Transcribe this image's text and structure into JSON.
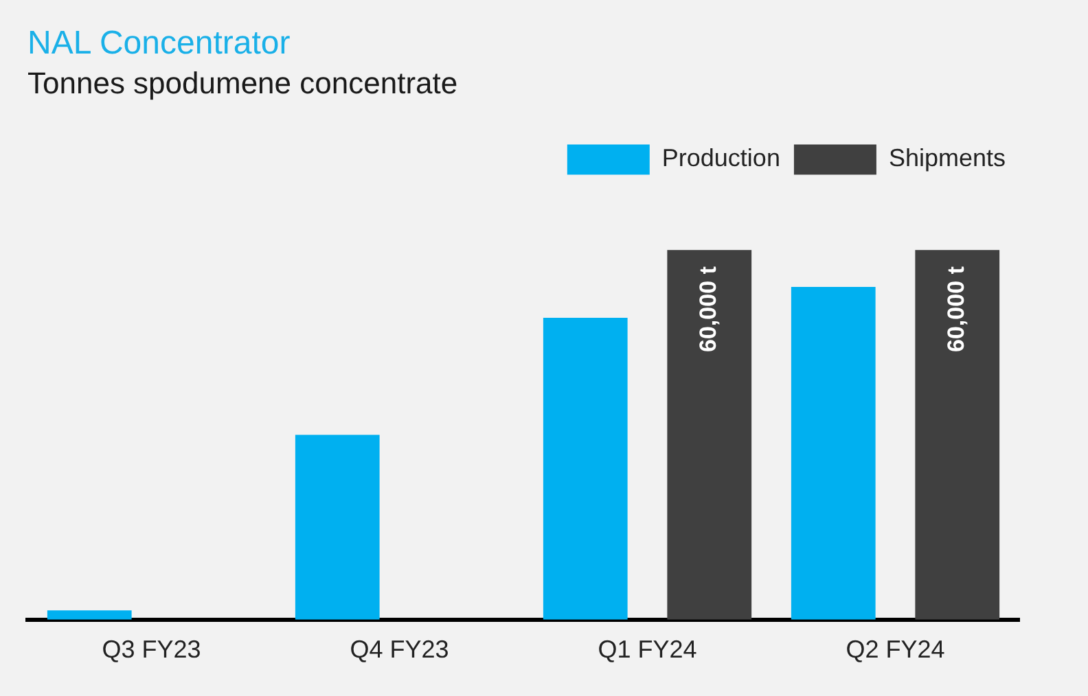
{
  "chart_data": {
    "type": "bar",
    "title": "NAL Concentrator",
    "subtitle": "Tonnes spodumene concentrate",
    "categories": [
      "Q3 FY23",
      "Q4 FY23",
      "Q1 FY24",
      "Q2 FY24"
    ],
    "tick_labels": "x",
    "legend": "top right",
    "grid": false,
    "series": [
      {
        "name": "Production",
        "color": "#00b0f0",
        "values": [
          1500,
          30000,
          49000,
          54000
        ]
      },
      {
        "name": "Shipments",
        "color": "#404040",
        "values": [
          null,
          null,
          60000,
          60000
        ],
        "value_labels": [
          null,
          null,
          "60,000 t",
          "60,000 t"
        ]
      }
    ]
  }
}
